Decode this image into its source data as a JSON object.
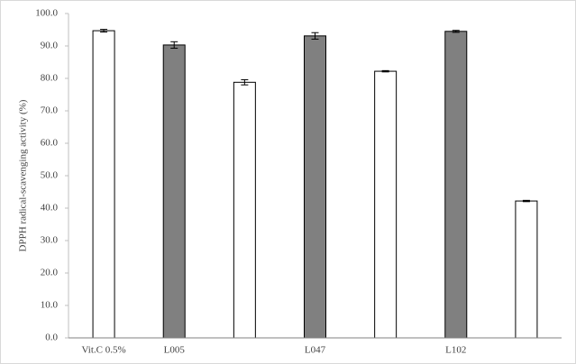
{
  "chart_data": {
    "type": "bar",
    "y_label": "DPPH radical-scavenging activity (%)",
    "categories": [
      "Vit.C 0.5%",
      "L005",
      null,
      "L047",
      null,
      "L102",
      null
    ],
    "values": [
      94.7,
      90.3,
      78.8,
      93.1,
      82.2,
      94.5,
      42.2
    ],
    "errors": [
      0.4,
      1.0,
      0.8,
      1.0,
      0.2,
      0.3,
      0.2
    ],
    "colors": [
      "#ffffff",
      "#808080",
      "#ffffff",
      "#808080",
      "#ffffff",
      "#808080",
      "#ffffff"
    ],
    "ylim": [
      0,
      100
    ],
    "yticks": [
      {
        "value": 0,
        "label": "0.0"
      },
      {
        "value": 10,
        "label": "10.0"
      },
      {
        "value": 20,
        "label": "20.0"
      },
      {
        "value": 30,
        "label": "30.0"
      },
      {
        "value": 40,
        "label": "40.0"
      },
      {
        "value": 50,
        "label": "50.0"
      },
      {
        "value": 60,
        "label": "60.0"
      },
      {
        "value": 70,
        "label": "70.0"
      },
      {
        "value": 80,
        "label": "80.0"
      },
      {
        "value": 90,
        "label": "90.0"
      },
      {
        "value": 100,
        "label": "100.0"
      }
    ],
    "grid": false
  }
}
